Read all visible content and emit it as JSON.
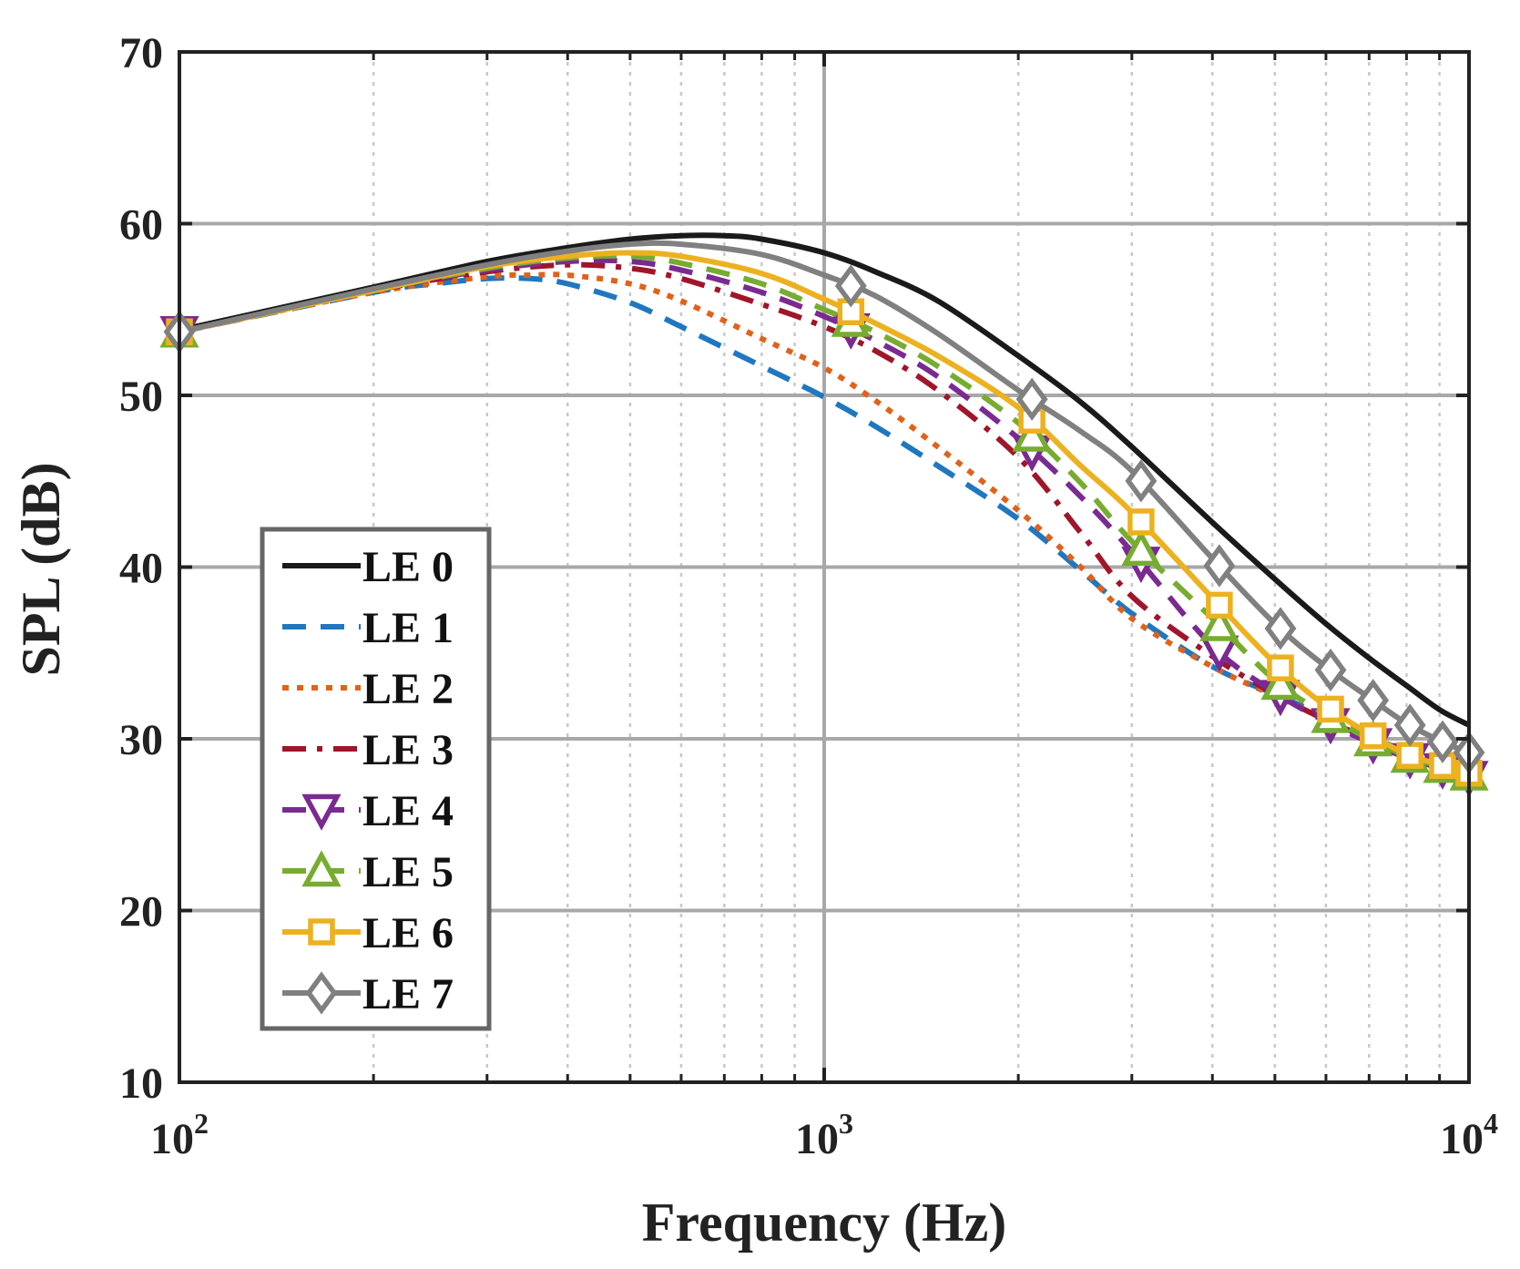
{
  "chart_data": {
    "type": "line",
    "title": "",
    "xlabel": "Frequency (Hz)",
    "ylabel": "SPL (dB)",
    "xscale": "log",
    "xlim": [
      100,
      10000
    ],
    "ylim": [
      10,
      70
    ],
    "grid": true,
    "legend_position": "middle-left",
    "y_ticks": [
      10,
      20,
      30,
      40,
      50,
      60,
      70
    ],
    "x_ticks": [
      {
        "value": 100,
        "base": "10",
        "exp": "2"
      },
      {
        "value": 1000,
        "base": "10",
        "exp": "3"
      },
      {
        "value": 10000,
        "base": "10",
        "exp": "4"
      }
    ],
    "series": [
      {
        "name": "LE 0",
        "color": "#1a1a1a",
        "dash": "solid",
        "marker": "none",
        "x": [
          100,
          200,
          300,
          400,
          500,
          600,
          700,
          800,
          1000,
          1200,
          1500,
          2000,
          2500,
          3000,
          4000,
          5000,
          6000,
          7000,
          8000,
          9000,
          10000
        ],
        "y": [
          53.8,
          56.3,
          57.8,
          58.6,
          59.1,
          59.3,
          59.3,
          59.1,
          58.3,
          57.2,
          55.5,
          52.3,
          49.6,
          47.0,
          42.6,
          39.3,
          36.7,
          34.7,
          33.1,
          31.7,
          30.8
        ]
      },
      {
        "name": "LE 1",
        "color": "#1f77c0",
        "dash": "dashed",
        "marker": "none",
        "x": [
          100,
          200,
          250,
          300,
          350,
          400,
          500,
          600,
          800,
          1000,
          1200,
          1500,
          2000,
          2500,
          3000,
          4000,
          5000,
          6000,
          7000,
          8000,
          9000,
          10000
        ],
        "y": [
          53.7,
          56.0,
          56.5,
          56.8,
          56.8,
          56.5,
          55.4,
          54.0,
          51.7,
          49.9,
          48.2,
          45.9,
          42.8,
          39.8,
          37.3,
          34.2,
          32.6,
          31.3,
          30.2,
          29.2,
          28.4,
          27.8
        ]
      },
      {
        "name": "LE 2",
        "color": "#e0621a",
        "dash": "dotted",
        "marker": "none",
        "x": [
          100,
          200,
          300,
          350,
          400,
          500,
          600,
          800,
          1000,
          1200,
          1500,
          2000,
          2500,
          3000,
          4000,
          5000,
          6000,
          7000,
          8000,
          9000,
          10000
        ],
        "y": [
          53.7,
          56.0,
          56.9,
          57.0,
          57.0,
          56.5,
          55.5,
          53.3,
          51.6,
          49.7,
          47.0,
          43.3,
          40.0,
          37.0,
          34.2,
          32.5,
          31.2,
          30.2,
          29.2,
          28.4,
          27.8
        ]
      },
      {
        "name": "LE 3",
        "color": "#a0152a",
        "dash": "dashdot",
        "marker": "none",
        "x": [
          100,
          200,
          300,
          400,
          500,
          600,
          800,
          1000,
          1200,
          1500,
          2000,
          2500,
          3000,
          4000,
          5000,
          6000,
          7000,
          8000,
          9000,
          10000
        ],
        "y": [
          53.7,
          56.1,
          57.2,
          57.6,
          57.4,
          56.8,
          55.3,
          54.0,
          52.6,
          50.3,
          46.4,
          42.0,
          38.3,
          34.8,
          32.6,
          31.1,
          30.0,
          29.1,
          28.3,
          27.6
        ]
      },
      {
        "name": "LE 4",
        "color": "#7a2a92",
        "dash": "dashed",
        "marker": "triangle-down",
        "x": [
          100,
          200,
          300,
          400,
          500,
          600,
          800,
          1000,
          1200,
          1500,
          2000,
          2500,
          3000,
          4000,
          5000,
          6000,
          7000,
          8000,
          9000,
          10000
        ],
        "y": [
          53.7,
          56.1,
          57.3,
          57.8,
          57.8,
          57.3,
          56.0,
          54.6,
          53.2,
          51.1,
          47.5,
          44.1,
          40.9,
          35.4,
          32.7,
          31.0,
          29.8,
          28.9,
          28.3,
          27.8
        ]
      },
      {
        "name": "LE 5",
        "color": "#77ac30",
        "dash": "dashed",
        "marker": "triangle-up",
        "x": [
          100,
          200,
          300,
          400,
          500,
          600,
          800,
          1000,
          1200,
          1500,
          2000,
          2500,
          3000,
          4000,
          5000,
          6000,
          7000,
          8000,
          9000,
          10000
        ],
        "y": [
          53.7,
          56.1,
          57.4,
          58.0,
          58.1,
          57.7,
          56.5,
          55.0,
          53.7,
          51.7,
          48.4,
          44.9,
          41.5,
          37.0,
          33.4,
          31.4,
          30.0,
          29.0,
          28.4,
          27.9
        ]
      },
      {
        "name": "LE 6",
        "color": "#edb120",
        "dash": "solid",
        "marker": "square",
        "x": [
          100,
          200,
          300,
          400,
          500,
          600,
          800,
          1000,
          1200,
          1500,
          2000,
          2500,
          3000,
          4000,
          5000,
          6000,
          7000,
          8000,
          9000,
          10000
        ],
        "y": [
          53.7,
          56.1,
          57.5,
          58.1,
          58.3,
          58.1,
          57.1,
          55.6,
          54.2,
          52.3,
          49.3,
          45.9,
          43.2,
          38.2,
          34.4,
          31.9,
          30.3,
          29.1,
          28.5,
          28.0
        ]
      },
      {
        "name": "LE 7",
        "color": "#808080",
        "dash": "solid",
        "marker": "diamond",
        "x": [
          100,
          200,
          300,
          400,
          500,
          600,
          800,
          1000,
          1200,
          1500,
          2000,
          2500,
          3000,
          4000,
          5000,
          6000,
          7000,
          8000,
          9000,
          10000
        ],
        "y": [
          53.7,
          56.2,
          57.6,
          58.4,
          58.8,
          58.8,
          58.2,
          57.0,
          55.8,
          53.6,
          50.3,
          47.9,
          45.6,
          40.5,
          36.7,
          34.2,
          32.4,
          30.9,
          29.9,
          29.2
        ]
      }
    ]
  }
}
